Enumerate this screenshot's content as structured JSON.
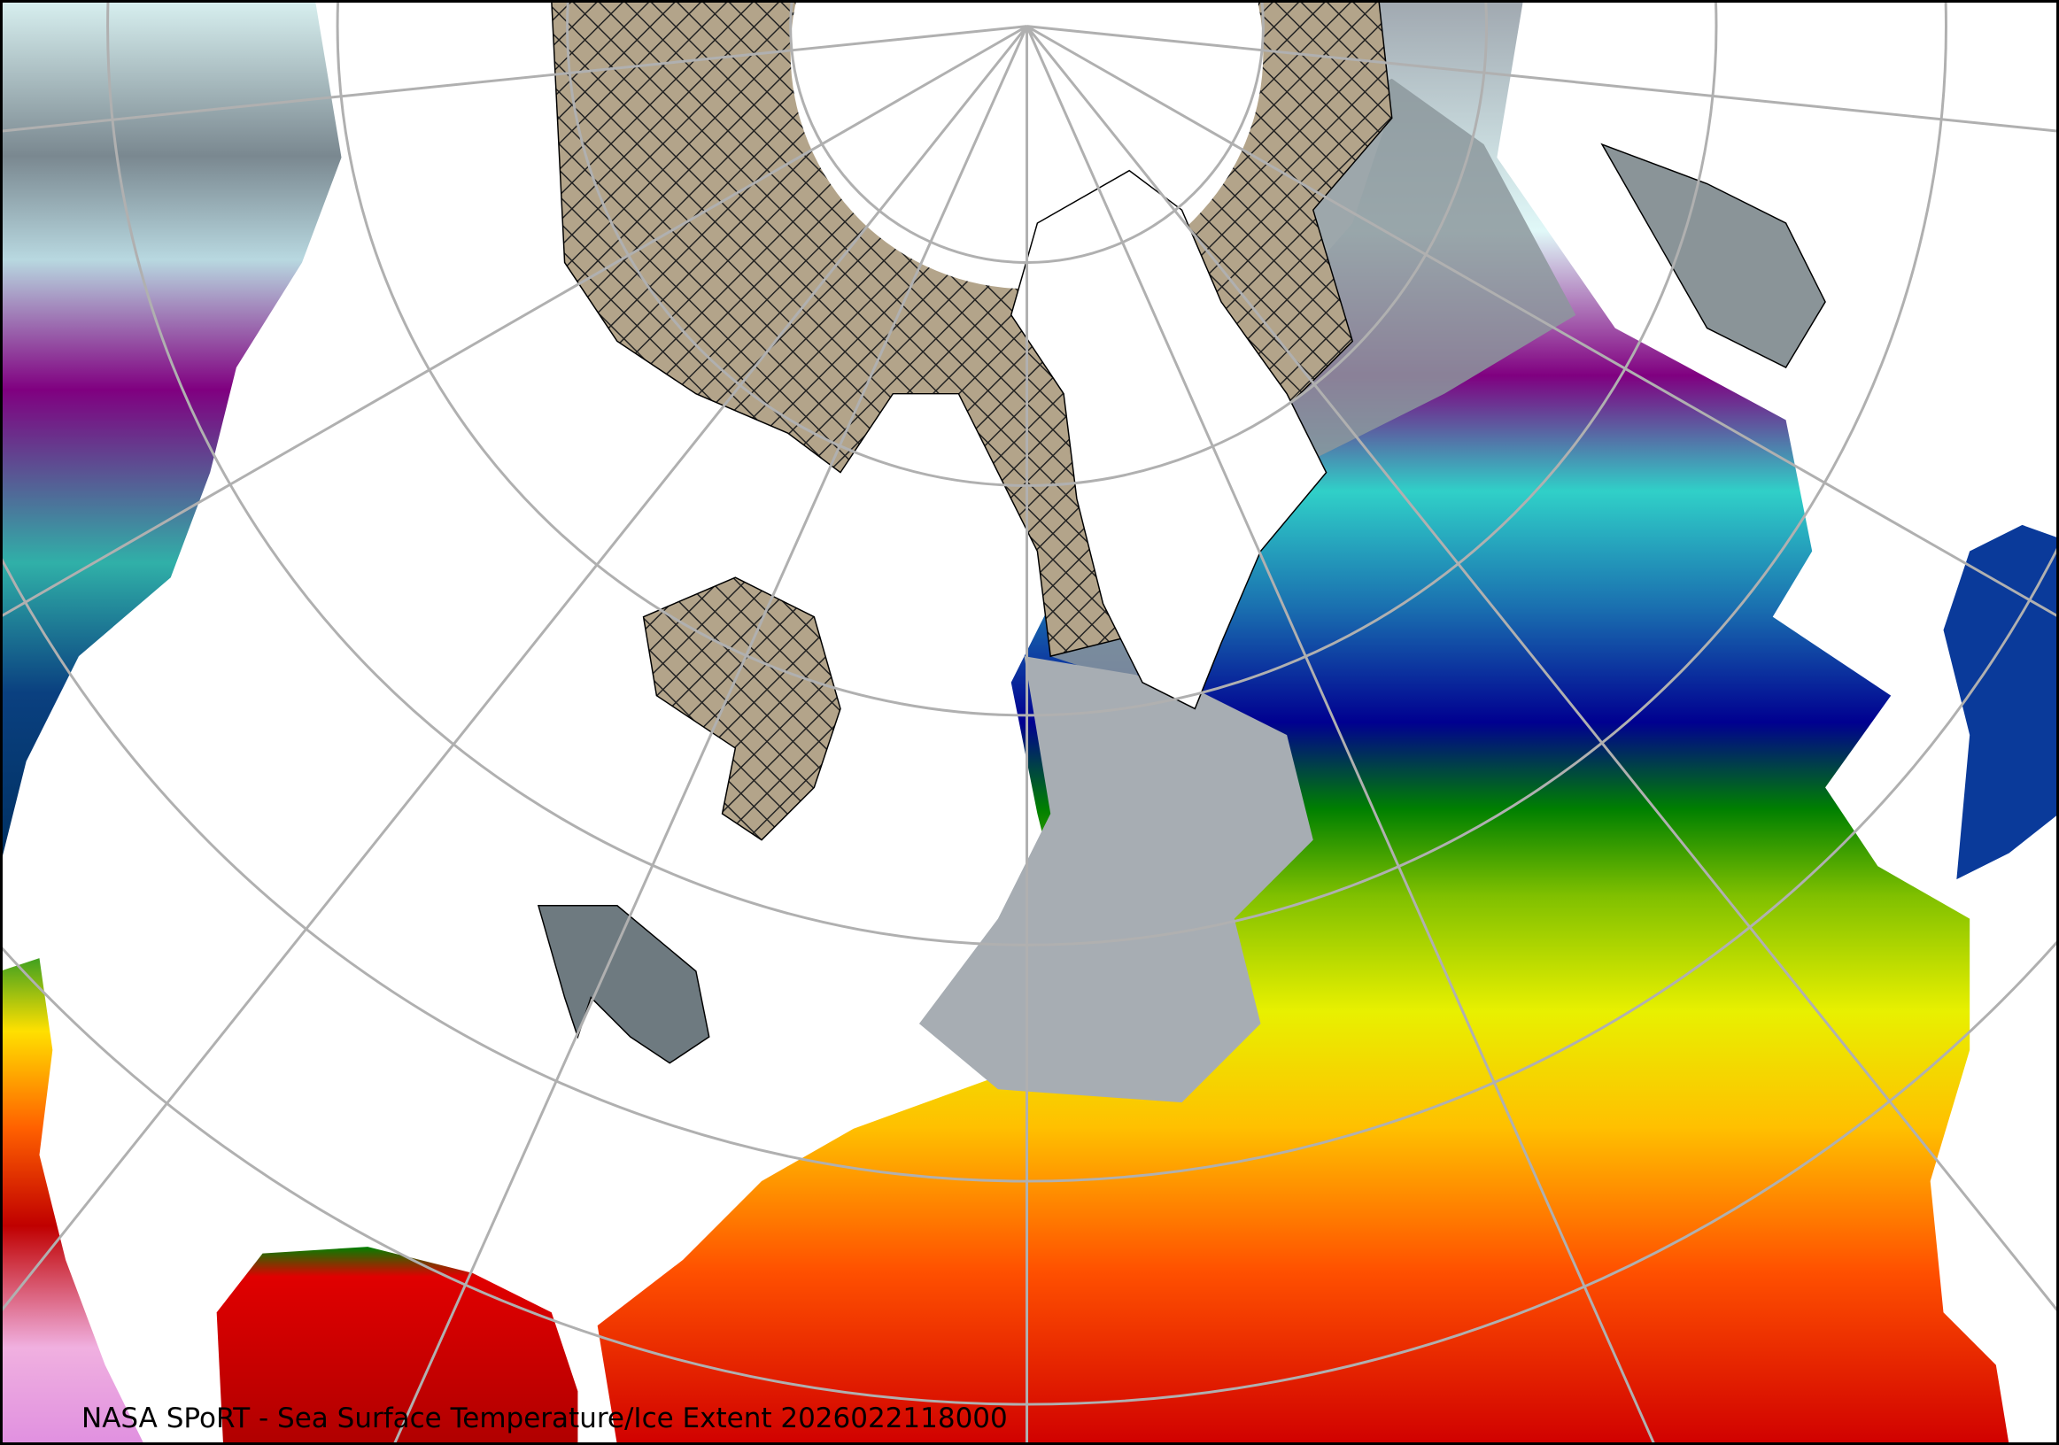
{
  "caption": "NASA SPoRT - Sea Surface Temperature/Ice Extent 2026022118000",
  "colors": {
    "ice": "#b3a48a",
    "land": "#ffffff",
    "graticule": "#b0b0b0",
    "sst_scale": [
      "#f0a0f0",
      "#c00000",
      "#ff4000",
      "#ffa000",
      "#ffff00",
      "#a0d000",
      "#008000",
      "#000090",
      "#30d0c8",
      "#800080",
      "#e0f8f8",
      "#a0a8b0",
      "#506060"
    ]
  },
  "layers": [
    "sea-surface-temperature",
    "ice-extent",
    "coastlines",
    "political-boundaries",
    "graticule"
  ]
}
